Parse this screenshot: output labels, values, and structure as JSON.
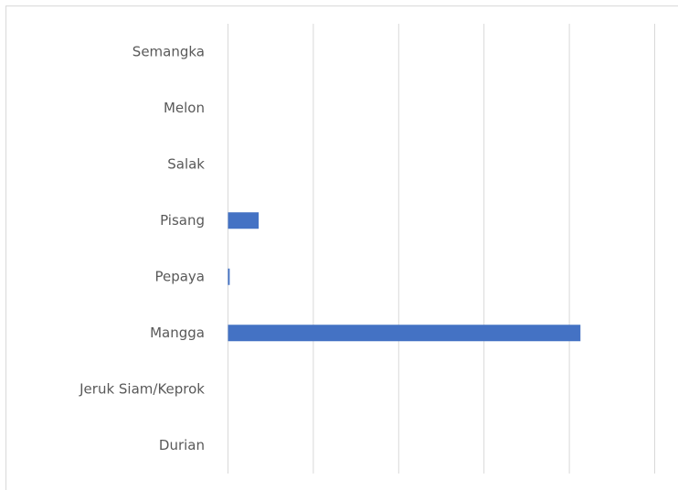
{
  "chart_data": {
    "type": "bar",
    "orientation": "horizontal",
    "categories": [
      "Semangka",
      "Melon",
      "Salak",
      "Pisang",
      "Pepaya",
      "Mangga",
      "Jeruk Siam/Keprok",
      "Durian"
    ],
    "values": [
      0,
      0,
      0,
      0.36,
      0.02,
      4.13,
      0,
      0
    ],
    "color": "#4472c4",
    "xlim": [
      0,
      5
    ],
    "xticks": [
      0,
      1,
      2,
      3,
      4,
      5
    ],
    "grid": true
  }
}
